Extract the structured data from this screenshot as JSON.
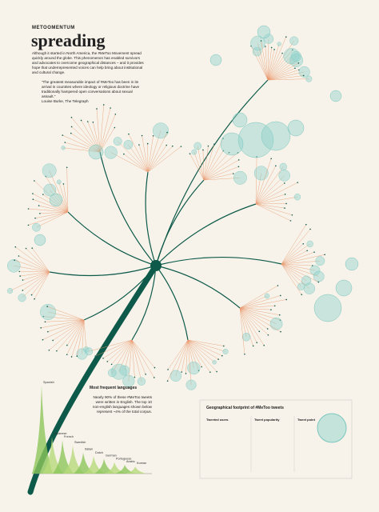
{
  "header": {
    "brand": "METOOMENTUM",
    "title": "spreading",
    "intro": "Although it started in North America, the #MeToo Movement spread quickly around the globe. This phenomenon has enabled survivors and advocates to overcome geographical distances – and it provides hope that underrepresented voices can help bring about institutional and cultural change.",
    "quote": "“The greatest measurable impact of #MeToo has been in its arrival in countries where ideology or religious doctrine have traditionally hampered open conversations about sexual assault.”",
    "source": "Louise Burke, The Telegraph"
  },
  "languages": {
    "title": "Most frequent languages",
    "note": "Nearly 90% of these #MeToo tweets were written in English. The top 10 non-english languages shown below represent ~4% of the total corpus.",
    "items": [
      {
        "name": "Spanish",
        "value": 100
      },
      {
        "name": "Japanese",
        "value": 42
      },
      {
        "name": "French",
        "value": 38
      },
      {
        "name": "Swedish",
        "value": 32
      },
      {
        "name": "Italian",
        "value": 24
      },
      {
        "name": "Dutch",
        "value": 20
      },
      {
        "name": "German",
        "value": 17
      },
      {
        "name": "Portuguese",
        "value": 13
      },
      {
        "name": "Arabic",
        "value": 10
      },
      {
        "name": "Korean",
        "value": 8
      }
    ]
  },
  "footprint": {
    "title": "Geographical footprint of #MeToo tweets",
    "panels": [
      "Tweeted users",
      "Tweet popularity",
      "Tweet point"
    ]
  }
}
